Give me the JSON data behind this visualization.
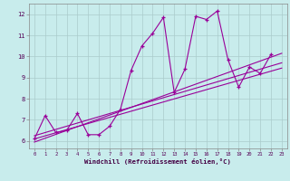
{
  "xlabel": "Windchill (Refroidissement éolien,°C)",
  "bg_color": "#c8ecec",
  "line_color": "#990099",
  "grid_color": "#aacccc",
  "xlim": [
    -0.5,
    23.5
  ],
  "ylim": [
    5.65,
    12.5
  ],
  "xticks": [
    0,
    1,
    2,
    3,
    4,
    5,
    6,
    7,
    8,
    9,
    10,
    11,
    12,
    13,
    14,
    15,
    16,
    17,
    18,
    19,
    20,
    21,
    22,
    23
  ],
  "yticks": [
    6,
    7,
    8,
    9,
    10,
    11,
    12
  ],
  "curve_x": [
    0,
    1,
    2,
    3,
    4,
    5,
    6,
    7,
    8,
    9,
    10,
    11,
    12,
    13,
    14,
    15,
    16,
    17,
    18,
    19,
    20,
    21,
    22
  ],
  "curve_y": [
    6.1,
    7.2,
    6.4,
    6.5,
    7.3,
    6.3,
    6.3,
    6.7,
    7.5,
    9.35,
    10.5,
    11.1,
    11.85,
    8.3,
    9.4,
    11.9,
    11.75,
    12.15,
    9.85,
    8.55,
    9.5,
    9.2,
    10.1
  ],
  "line2_x": [
    0,
    23
  ],
  "line2_y": [
    6.25,
    9.7
  ],
  "line3_x": [
    0,
    23
  ],
  "line3_y": [
    6.1,
    9.45
  ],
  "line4_x": [
    0,
    23
  ],
  "line4_y": [
    5.95,
    10.15
  ]
}
